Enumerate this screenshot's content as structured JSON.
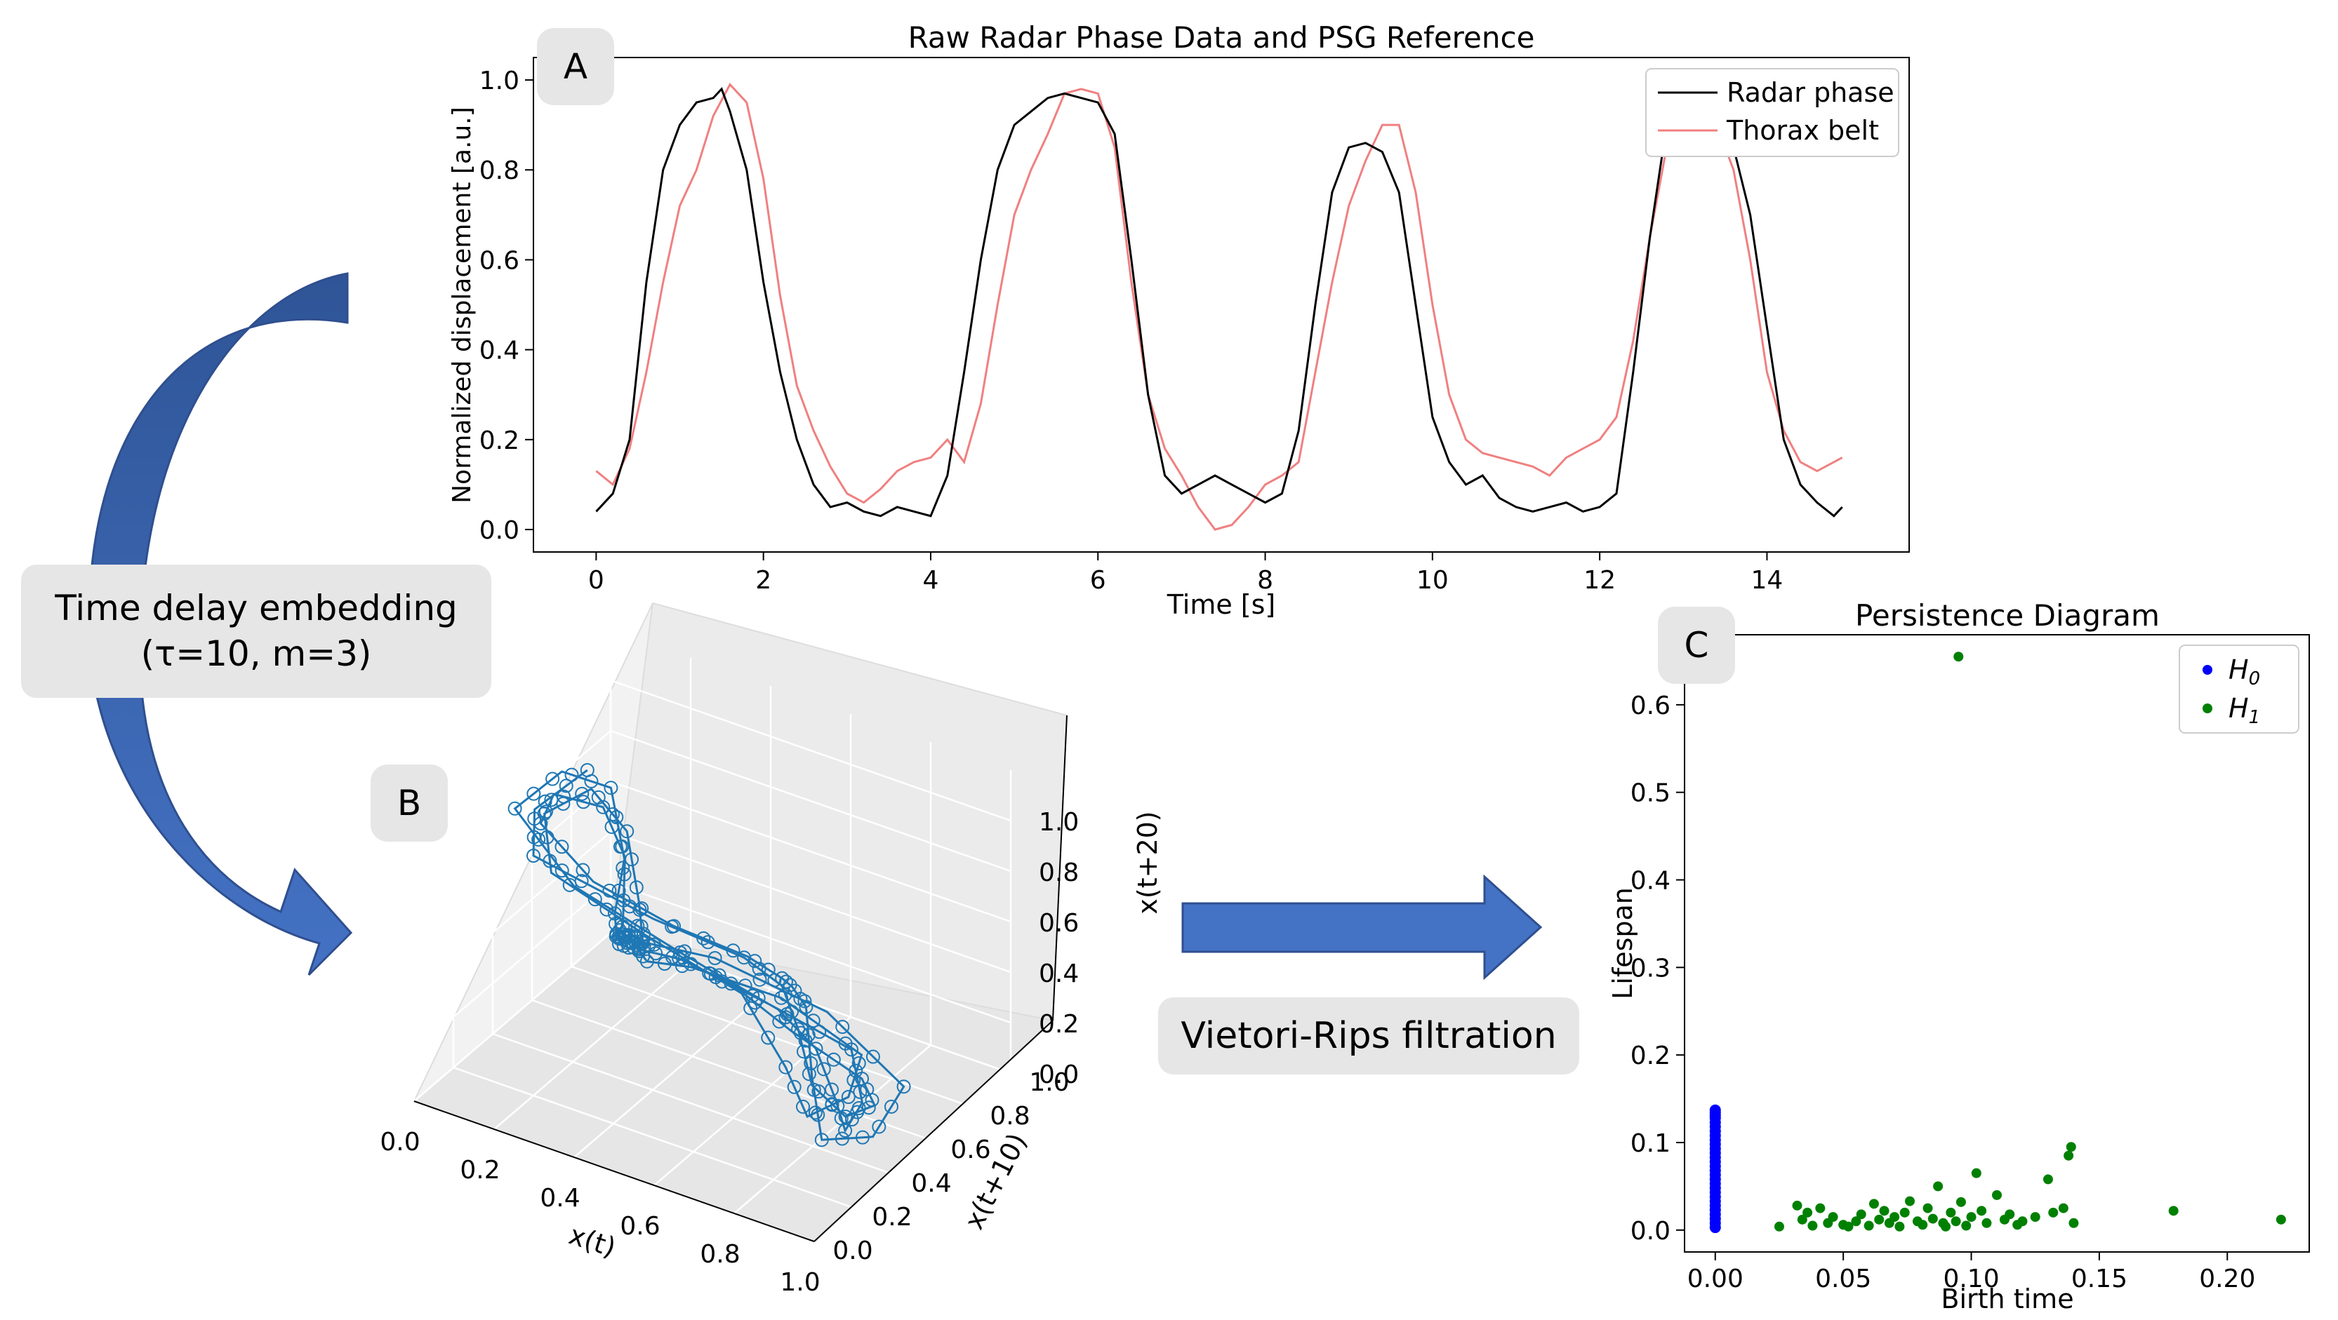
{
  "panels": {
    "A": "A",
    "B": "B",
    "C": "C"
  },
  "annotations": {
    "tde_line1": "Time delay embedding",
    "tde_line2": "(τ=10, m=3)",
    "vr": "Vietori-Rips filtration"
  },
  "colors": {
    "radar": "#000000",
    "thorax": "#f08080",
    "embedding": "#1f77b4",
    "h0": "#0000ff",
    "h1": "#008000",
    "arrow": "#4472c4"
  },
  "chart_data": [
    {
      "id": "A",
      "type": "line",
      "title": "Raw Radar Phase Data and PSG Reference",
      "xlabel": "Time [s]",
      "ylabel": "Normalized displacement [a.u.]",
      "xlim": [
        -0.75,
        15.7
      ],
      "ylim": [
        -0.05,
        1.05
      ],
      "xticks": [
        0,
        2,
        4,
        6,
        8,
        10,
        12,
        14
      ],
      "xtick_labels": [
        "0",
        "2",
        "4",
        "6",
        "8",
        "10",
        "12",
        "14"
      ],
      "yticks": [
        0.0,
        0.2,
        0.4,
        0.6,
        0.8,
        1.0
      ],
      "ytick_labels": [
        "0.0",
        "0.2",
        "0.4",
        "0.6",
        "0.8",
        "1.0"
      ],
      "legend": [
        "Radar phase",
        "Thorax belt"
      ],
      "legend_position": "top-right",
      "series": [
        {
          "name": "Radar phase",
          "x": [
            0.0,
            0.2,
            0.4,
            0.6,
            0.8,
            1.0,
            1.2,
            1.4,
            1.5,
            1.6,
            1.8,
            2.0,
            2.2,
            2.4,
            2.6,
            2.8,
            3.0,
            3.2,
            3.4,
            3.6,
            3.8,
            4.0,
            4.2,
            4.4,
            4.6,
            4.8,
            5.0,
            5.2,
            5.4,
            5.6,
            5.8,
            6.0,
            6.2,
            6.4,
            6.6,
            6.8,
            7.0,
            7.2,
            7.4,
            7.6,
            7.8,
            8.0,
            8.2,
            8.4,
            8.6,
            8.8,
            9.0,
            9.2,
            9.4,
            9.6,
            9.8,
            10.0,
            10.2,
            10.4,
            10.6,
            10.8,
            11.0,
            11.2,
            11.4,
            11.6,
            11.8,
            12.0,
            12.2,
            12.4,
            12.6,
            12.8,
            13.0,
            13.2,
            13.4,
            13.6,
            13.8,
            14.0,
            14.2,
            14.4,
            14.6,
            14.8,
            14.9
          ],
          "y": [
            0.04,
            0.08,
            0.2,
            0.55,
            0.8,
            0.9,
            0.95,
            0.96,
            0.98,
            0.93,
            0.8,
            0.55,
            0.35,
            0.2,
            0.1,
            0.05,
            0.06,
            0.04,
            0.03,
            0.05,
            0.04,
            0.03,
            0.12,
            0.35,
            0.6,
            0.8,
            0.9,
            0.93,
            0.96,
            0.97,
            0.96,
            0.95,
            0.88,
            0.6,
            0.3,
            0.12,
            0.08,
            0.1,
            0.12,
            0.1,
            0.08,
            0.06,
            0.08,
            0.22,
            0.5,
            0.75,
            0.85,
            0.86,
            0.84,
            0.75,
            0.5,
            0.25,
            0.15,
            0.1,
            0.12,
            0.07,
            0.05,
            0.04,
            0.05,
            0.06,
            0.04,
            0.05,
            0.08,
            0.35,
            0.65,
            0.9,
            0.97,
            0.98,
            0.93,
            0.85,
            0.7,
            0.45,
            0.2,
            0.1,
            0.06,
            0.03,
            0.05
          ]
        },
        {
          "name": "Thorax belt",
          "x": [
            0.0,
            0.2,
            0.4,
            0.6,
            0.8,
            1.0,
            1.2,
            1.4,
            1.6,
            1.8,
            2.0,
            2.2,
            2.4,
            2.6,
            2.8,
            3.0,
            3.2,
            3.4,
            3.6,
            3.8,
            4.0,
            4.2,
            4.4,
            4.6,
            4.8,
            5.0,
            5.2,
            5.4,
            5.6,
            5.8,
            6.0,
            6.2,
            6.4,
            6.6,
            6.8,
            7.0,
            7.2,
            7.4,
            7.6,
            7.8,
            8.0,
            8.2,
            8.4,
            8.6,
            8.8,
            9.0,
            9.2,
            9.4,
            9.6,
            9.8,
            10.0,
            10.2,
            10.4,
            10.6,
            10.8,
            11.0,
            11.2,
            11.4,
            11.6,
            11.8,
            12.0,
            12.2,
            12.4,
            12.6,
            12.8,
            13.0,
            13.2,
            13.4,
            13.6,
            13.8,
            14.0,
            14.2,
            14.4,
            14.6,
            14.8,
            14.9
          ],
          "y": [
            0.13,
            0.1,
            0.18,
            0.35,
            0.55,
            0.72,
            0.8,
            0.92,
            0.99,
            0.95,
            0.78,
            0.52,
            0.32,
            0.22,
            0.14,
            0.08,
            0.06,
            0.09,
            0.13,
            0.15,
            0.16,
            0.2,
            0.15,
            0.28,
            0.5,
            0.7,
            0.8,
            0.88,
            0.97,
            0.98,
            0.97,
            0.85,
            0.55,
            0.3,
            0.18,
            0.12,
            0.05,
            0.0,
            0.01,
            0.05,
            0.1,
            0.12,
            0.15,
            0.35,
            0.55,
            0.72,
            0.82,
            0.9,
            0.9,
            0.75,
            0.5,
            0.3,
            0.2,
            0.17,
            0.16,
            0.15,
            0.14,
            0.12,
            0.16,
            0.18,
            0.2,
            0.25,
            0.42,
            0.65,
            0.85,
            0.95,
            0.98,
            0.9,
            0.8,
            0.6,
            0.35,
            0.22,
            0.15,
            0.13,
            0.15,
            0.16
          ]
        }
      ]
    },
    {
      "id": "B",
      "type": "line3d",
      "xlabel": "x(t)",
      "ylabel": "x(t+10)",
      "zlabel": "x(t+20)",
      "xtick_labels": [
        "0.0",
        "0.2",
        "0.4",
        "0.6",
        "0.8",
        "1.0"
      ],
      "ytick_labels": [
        "0.0",
        "0.2",
        "0.4",
        "0.6",
        "0.8",
        "1.0"
      ],
      "ztick_labels": [
        "0.0",
        "0.2",
        "0.4",
        "0.6",
        "0.8",
        "1.0"
      ],
      "embedding": {
        "tau": 10,
        "m": 3
      }
    },
    {
      "id": "C",
      "type": "scatter",
      "title": "Persistence Diagram",
      "xlabel": "Birth time",
      "ylabel": "Lifespan",
      "xlim": [
        -0.012,
        0.232
      ],
      "ylim": [
        -0.025,
        0.68
      ],
      "xticks": [
        0.0,
        0.05,
        0.1,
        0.15,
        0.2
      ],
      "xtick_labels": [
        "0.00",
        "0.05",
        "0.10",
        "0.15",
        "0.20"
      ],
      "yticks": [
        0.0,
        0.1,
        0.2,
        0.3,
        0.4,
        0.5,
        0.6
      ],
      "ytick_labels": [
        "0.0",
        "0.1",
        "0.2",
        "0.3",
        "0.4",
        "0.5",
        "0.6"
      ],
      "legend": [
        "H0",
        "H1"
      ],
      "legend_position": "top-right",
      "series": [
        {
          "name": "H0",
          "x": [
            0,
            0,
            0,
            0,
            0,
            0,
            0,
            0,
            0,
            0,
            0,
            0,
            0,
            0,
            0,
            0,
            0,
            0,
            0,
            0,
            0,
            0,
            0,
            0,
            0,
            0,
            0,
            0,
            0
          ],
          "y": [
            0.003,
            0.008,
            0.013,
            0.018,
            0.023,
            0.028,
            0.033,
            0.038,
            0.043,
            0.048,
            0.053,
            0.058,
            0.063,
            0.068,
            0.073,
            0.078,
            0.083,
            0.088,
            0.093,
            0.098,
            0.103,
            0.108,
            0.113,
            0.118,
            0.123,
            0.128,
            0.131,
            0.134,
            0.137
          ]
        },
        {
          "name": "H1",
          "x": [
            0.025,
            0.032,
            0.034,
            0.036,
            0.038,
            0.041,
            0.044,
            0.046,
            0.05,
            0.052,
            0.055,
            0.057,
            0.06,
            0.062,
            0.064,
            0.066,
            0.068,
            0.07,
            0.072,
            0.074,
            0.076,
            0.079,
            0.081,
            0.083,
            0.085,
            0.087,
            0.089,
            0.09,
            0.092,
            0.094,
            0.096,
            0.098,
            0.1,
            0.102,
            0.104,
            0.106,
            0.11,
            0.113,
            0.115,
            0.118,
            0.12,
            0.125,
            0.13,
            0.132,
            0.136,
            0.138,
            0.139,
            0.14,
            0.095,
            0.179,
            0.221
          ],
          "y": [
            0.004,
            0.028,
            0.012,
            0.02,
            0.005,
            0.025,
            0.008,
            0.015,
            0.006,
            0.004,
            0.01,
            0.018,
            0.005,
            0.03,
            0.012,
            0.022,
            0.008,
            0.015,
            0.004,
            0.02,
            0.033,
            0.01,
            0.006,
            0.025,
            0.013,
            0.05,
            0.008,
            0.004,
            0.02,
            0.01,
            0.032,
            0.005,
            0.015,
            0.065,
            0.022,
            0.008,
            0.04,
            0.012,
            0.018,
            0.006,
            0.01,
            0.015,
            0.058,
            0.02,
            0.025,
            0.085,
            0.095,
            0.008,
            0.655,
            0.022,
            0.012
          ]
        }
      ]
    }
  ]
}
